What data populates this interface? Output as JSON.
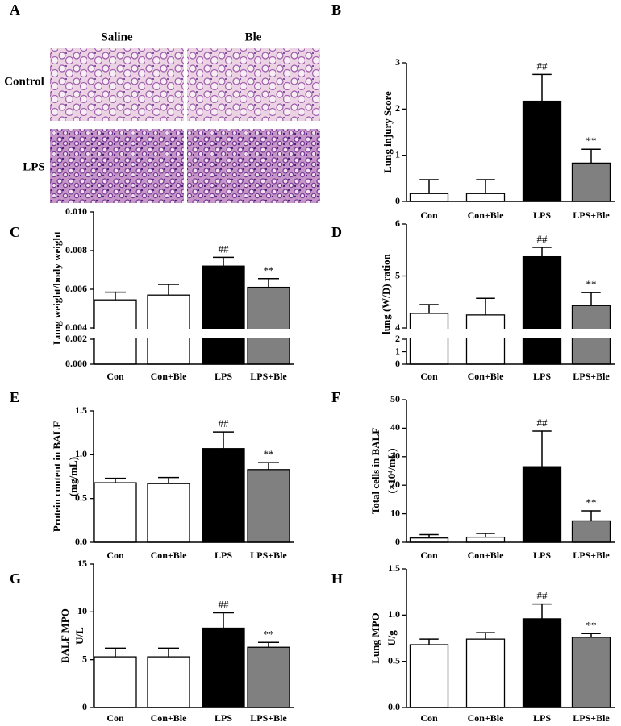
{
  "histology": {
    "panel_label": "A",
    "columns": [
      "Saline",
      "Ble"
    ],
    "rows": [
      "Control",
      "LPS"
    ]
  },
  "chart_data": [
    {
      "type": "bar",
      "panel_label": "B",
      "y_label": [
        "Lung injury Score"
      ],
      "categories": [
        "Con",
        "Con+Ble",
        "LPS",
        "LPS+Ble"
      ],
      "values": [
        0.17,
        0.17,
        2.17,
        0.83
      ],
      "errors": [
        0.3,
        0.3,
        0.58,
        0.3
      ],
      "colors": [
        "#ffffff",
        "#ffffff",
        "#000000",
        "#808080"
      ],
      "annotations": [
        null,
        null,
        "##",
        "**"
      ],
      "ylim": [
        0,
        3
      ],
      "yticks": [
        0,
        1,
        2,
        3
      ]
    },
    {
      "type": "bar",
      "panel_label": "C",
      "y_label": [
        "Lung weight/body weight"
      ],
      "categories": [
        "Con",
        "Con+Ble",
        "LPS",
        "LPS+Ble"
      ],
      "values": [
        0.00545,
        0.0057,
        0.0072,
        0.0061
      ],
      "errors": [
        0.0004,
        0.00055,
        0.00045,
        0.00045
      ],
      "colors": [
        "#ffffff",
        "#ffffff",
        "#000000",
        "#808080"
      ],
      "annotations": [
        null,
        null,
        "##",
        "**"
      ],
      "ylim": [
        0,
        0.01
      ],
      "axis_break": [
        0.002,
        0.004
      ],
      "yticks": [
        {
          "value": 0,
          "label": "0.000"
        },
        0.002,
        0.004,
        0.006,
        0.008,
        {
          "value": 0.01,
          "label": "0.010"
        }
      ]
    },
    {
      "type": "bar",
      "panel_label": "D",
      "y_label": [
        "lung (W/D) ration"
      ],
      "categories": [
        "Con",
        "Con+Ble",
        "LPS",
        "LPS+Ble"
      ],
      "values": [
        4.28,
        4.25,
        5.37,
        4.43
      ],
      "errors": [
        0.17,
        0.32,
        0.18,
        0.25
      ],
      "colors": [
        "#ffffff",
        "#ffffff",
        "#000000",
        "#808080"
      ],
      "annotations": [
        null,
        null,
        "##",
        "**"
      ],
      "ylim": [
        0,
        6
      ],
      "axis_break": [
        2,
        4
      ],
      "yticks": [
        0,
        1,
        2,
        4,
        5,
        6
      ]
    },
    {
      "type": "bar",
      "panel_label": "E",
      "y_label": [
        "Protein content in BALF",
        "(mg/mL)"
      ],
      "categories": [
        "Con",
        "Con+Ble",
        "LPS",
        "LPS+Ble"
      ],
      "values": [
        0.68,
        0.67,
        1.07,
        0.83
      ],
      "errors": [
        0.05,
        0.07,
        0.19,
        0.08
      ],
      "colors": [
        "#ffffff",
        "#ffffff",
        "#000000",
        "#808080"
      ],
      "annotations": [
        null,
        null,
        "##",
        "**"
      ],
      "ylim": [
        0,
        1.5
      ],
      "yticks": [
        {
          "value": 0,
          "label": "0.0"
        },
        0.5,
        {
          "value": 1,
          "label": "1.0"
        },
        1.5
      ]
    },
    {
      "type": "bar",
      "panel_label": "F",
      "y_label": [
        "Total cells in BALF",
        "(×10⁴/mL)"
      ],
      "categories": [
        "Con",
        "Con+Ble",
        "LPS",
        "LPS+Ble"
      ],
      "values": [
        1.5,
        1.8,
        26.5,
        7.5
      ],
      "errors": [
        1.2,
        1.3,
        12.5,
        3.5
      ],
      "colors": [
        "#ffffff",
        "#ffffff",
        "#000000",
        "#808080"
      ],
      "annotations": [
        null,
        null,
        "##",
        "**"
      ],
      "ylim": [
        0,
        50
      ],
      "yticks": [
        0,
        10,
        20,
        30,
        40,
        50
      ]
    },
    {
      "type": "bar",
      "panel_label": "G",
      "y_label": [
        "BALF MPO",
        "U/L"
      ],
      "categories": [
        "Con",
        "Con+Ble",
        "LPS",
        "LPS+Ble"
      ],
      "values": [
        5.3,
        5.3,
        8.3,
        6.3
      ],
      "errors": [
        0.9,
        0.9,
        1.6,
        0.5
      ],
      "colors": [
        "#ffffff",
        "#ffffff",
        "#000000",
        "#808080"
      ],
      "annotations": [
        null,
        null,
        "##",
        "**"
      ],
      "ylim": [
        0,
        15
      ],
      "yticks": [
        0,
        5,
        10,
        15
      ]
    },
    {
      "type": "bar",
      "panel_label": "H",
      "y_label": [
        "Lung MPO",
        "U/g"
      ],
      "categories": [
        "Con",
        "Con+Ble",
        "LPS",
        "LPS+Ble"
      ],
      "values": [
        0.68,
        0.74,
        0.96,
        0.76
      ],
      "errors": [
        0.06,
        0.07,
        0.16,
        0.04
      ],
      "colors": [
        "#ffffff",
        "#ffffff",
        "#000000",
        "#808080"
      ],
      "annotations": [
        null,
        null,
        "##",
        "**"
      ],
      "ylim": [
        0,
        1.5
      ],
      "yticks": [
        {
          "value": 0,
          "label": "0.0"
        },
        0.5,
        {
          "value": 1,
          "label": "1.0"
        },
        1.5
      ]
    }
  ]
}
